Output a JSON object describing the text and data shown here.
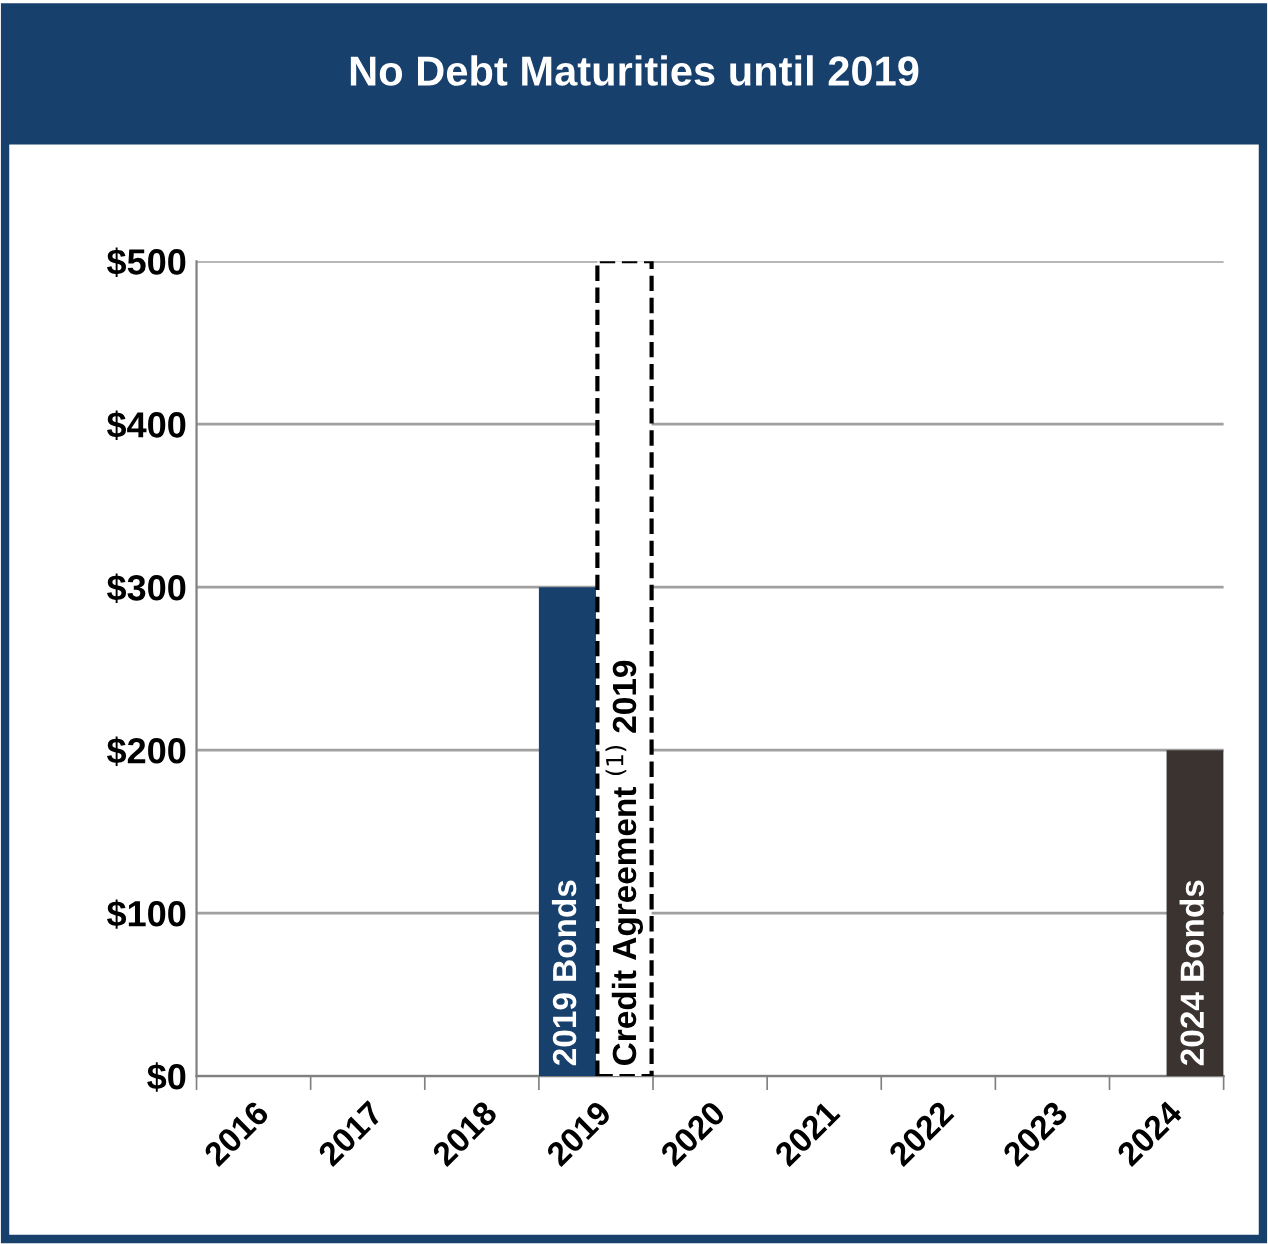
{
  "chart_data": {
    "type": "bar",
    "title": "No Debt Maturities until 2019",
    "categories": [
      "2016",
      "2017",
      "2018",
      "2019",
      "2020",
      "2021",
      "2022",
      "2023",
      "2024"
    ],
    "series": [
      {
        "name": "2019 Bonds",
        "color": "#17406d",
        "values": [
          null,
          null,
          null,
          300,
          null,
          null,
          null,
          null,
          null
        ]
      },
      {
        "name": "Credit Agreement $^{(1)}$ 2019",
        "color": "#ffffff",
        "line_style": "dashed",
        "values": [
          null,
          null,
          null,
          500,
          null,
          null,
          null,
          null,
          null
        ]
      },
      {
        "name": "2024 Bonds",
        "color": "#3b3330",
        "values": [
          null,
          null,
          null,
          null,
          null,
          null,
          null,
          null,
          200
        ]
      }
    ],
    "ylim": [
      0,
      500
    ],
    "yticks": [
      {
        "value": 0,
        "label": "$0"
      },
      {
        "value": 100,
        "label": "$100"
      },
      {
        "value": 200,
        "label": "$200"
      },
      {
        "value": 300,
        "label": "$300"
      },
      {
        "value": 400,
        "label": "$400"
      },
      {
        "value": 500,
        "label": "$500"
      }
    ],
    "grid": "y"
  }
}
